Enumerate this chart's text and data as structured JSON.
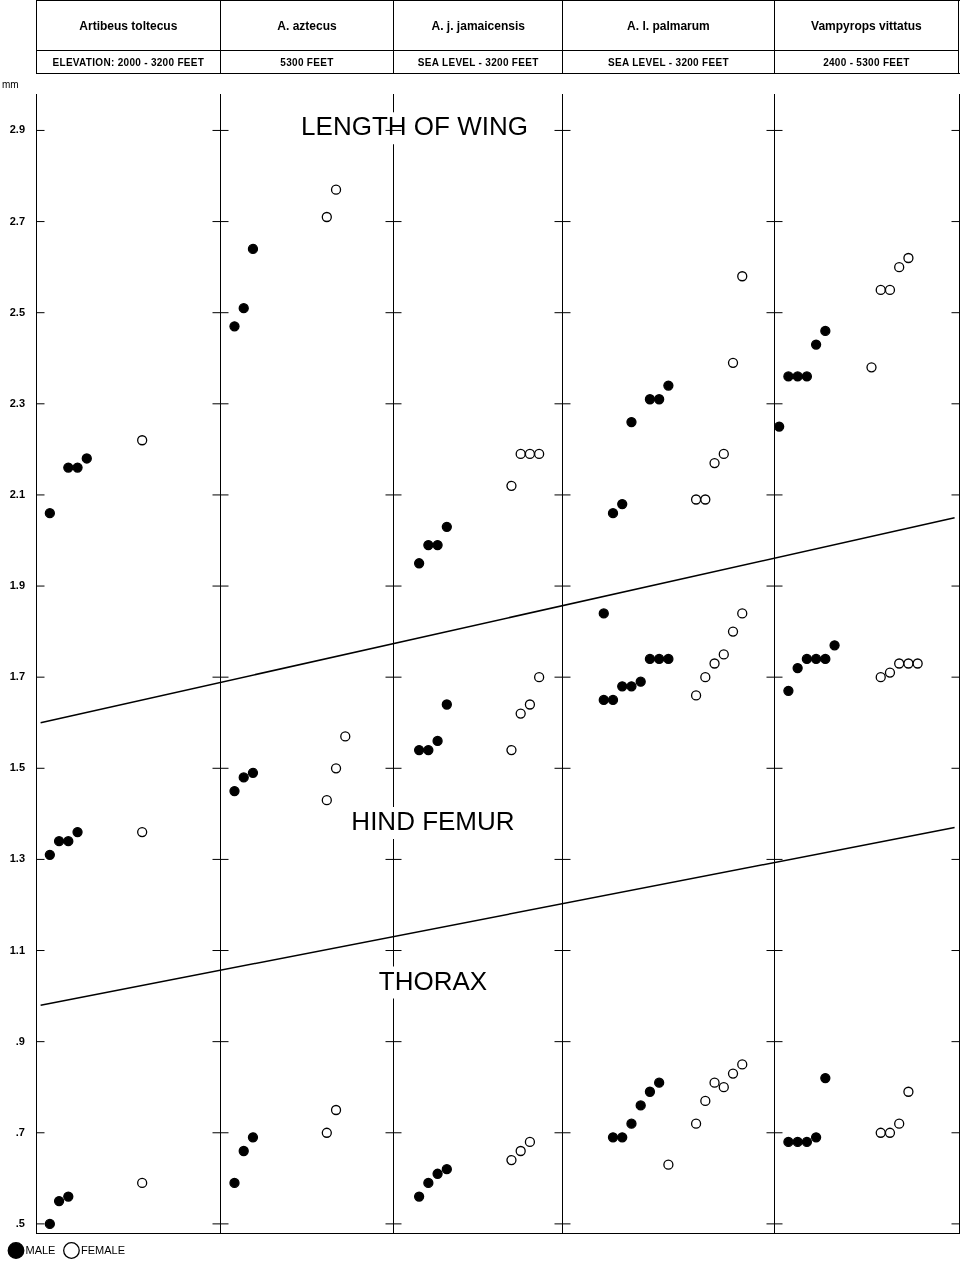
{
  "chart_data": {
    "type": "scatter",
    "categories": [
      null,
      null,
      null,
      null,
      null,
      null,
      null,
      null,
      null,
      null,
      null,
      null,
      null,
      null,
      null,
      null,
      null,
      null,
      null,
      null,
      null,
      null,
      null,
      null,
      null,
      null,
      null,
      null,
      null,
      null,
      null,
      null,
      null,
      null,
      null,
      null,
      null,
      null,
      null,
      null,
      null,
      null,
      null,
      null,
      null,
      null,
      null,
      null,
      null,
      null,
      null,
      null,
      null,
      null,
      null,
      null,
      null,
      null,
      null,
      null,
      null,
      null,
      null,
      null,
      null,
      null,
      null,
      null,
      null,
      null,
      null,
      null,
      null,
      null,
      null,
      null,
      null,
      null,
      null,
      null,
      null,
      null,
      null,
      null,
      null,
      null,
      null,
      null,
      null,
      null,
      null,
      null,
      null,
      null,
      null,
      null,
      null,
      null,
      null,
      null
    ],
    "ylabel": "mm",
    "ylim": [
      0.48,
      2.98
    ],
    "yticks": [
      {
        "value": 0.5,
        "label": ".5"
      },
      {
        "value": 0.7,
        "label": ".7"
      },
      {
        "value": 0.9,
        "label": ".9"
      },
      1.1,
      1.3,
      1.5,
      1.7,
      1.9,
      2.1,
      2.3,
      2.5,
      2.7,
      2.9
    ],
    "marker": "circle",
    "legend": "bottom left",
    "annotations": [
      "Artibeus toltecus",
      "A. aztecus",
      "A. j. jamaicensis",
      "A. l. palmarum",
      "Vampyrops vittatus",
      "ELEVATION: 2000 - 3200 FEET",
      "5300 FEET",
      "SEA LEVEL - 3200 FEET",
      "SEA LEVEL - 3200 FEET",
      "2400 - 5300 FEET",
      "LENGTH OF WING",
      "HIND FEMUR",
      "THORAX"
    ],
    "series": [
      {
        "name": "MALE",
        "color": "#000000",
        "values": [
          null,
          2.06,
          null,
          2.16,
          2.16,
          2.18,
          null,
          null,
          null,
          null,
          null,
          null,
          null,
          null,
          null,
          null,
          null,
          null,
          null,
          null,
          null,
          2.47,
          2.51,
          2.64,
          null,
          null,
          null,
          null,
          null,
          null,
          null,
          null,
          null,
          null,
          null,
          null,
          null,
          null,
          null,
          null,
          null,
          1.95,
          1.99,
          1.99,
          2.03,
          null,
          null,
          null,
          null,
          null,
          null,
          null,
          null,
          null,
          null,
          null,
          null,
          null,
          null,
          null,
          null,
          1.84,
          2.06,
          2.08,
          2.26,
          null,
          2.31,
          2.31,
          2.34,
          null,
          null,
          null,
          null,
          null,
          null,
          null,
          null,
          null,
          null,
          null,
          2.25,
          2.36,
          2.36,
          2.36,
          2.43,
          2.46,
          null,
          null,
          null,
          null,
          null,
          null,
          null,
          null,
          null,
          null,
          null,
          null,
          null,
          null
        ]
      },
      {
        "color": "#000000",
        "values": [
          null,
          1.31,
          1.34,
          1.34,
          1.36,
          null,
          null,
          null,
          null,
          null,
          null,
          null,
          null,
          null,
          null,
          null,
          null,
          null,
          null,
          null,
          null,
          1.45,
          1.48,
          1.49,
          null,
          null,
          null,
          null,
          null,
          null,
          null,
          null,
          null,
          null,
          null,
          null,
          null,
          null,
          null,
          null,
          null,
          1.54,
          1.54,
          1.56,
          1.64,
          null,
          null,
          null,
          null,
          null,
          null,
          null,
          null,
          null,
          null,
          null,
          null,
          null,
          null,
          null,
          null,
          1.65,
          1.65,
          1.68,
          1.68,
          1.69,
          1.74,
          1.74,
          1.74,
          null,
          null,
          null,
          null,
          null,
          null,
          null,
          null,
          null,
          null,
          null,
          null,
          1.67,
          1.72,
          1.74,
          1.74,
          1.74,
          1.77,
          null,
          null,
          null,
          null,
          null,
          null,
          null,
          null,
          null,
          null,
          null,
          null,
          null
        ]
      },
      {
        "color": "#000000",
        "values": [
          null,
          0.5,
          0.55,
          0.56,
          null,
          null,
          null,
          null,
          null,
          null,
          null,
          null,
          null,
          null,
          null,
          null,
          null,
          null,
          null,
          null,
          null,
          0.59,
          0.66,
          0.69,
          null,
          null,
          null,
          null,
          null,
          null,
          null,
          null,
          null,
          null,
          null,
          null,
          null,
          null,
          null,
          null,
          null,
          0.56,
          0.59,
          0.61,
          0.62,
          null,
          null,
          null,
          null,
          null,
          null,
          null,
          null,
          null,
          null,
          null,
          null,
          null,
          null,
          null,
          null,
          null,
          0.69,
          0.69,
          0.72,
          0.76,
          0.79,
          0.81,
          null,
          null,
          null,
          null,
          null,
          null,
          null,
          null,
          null,
          null,
          null,
          null,
          null,
          0.68,
          0.68,
          0.68,
          0.69,
          0.82,
          null,
          null,
          null,
          null,
          null,
          null,
          null,
          null,
          null,
          null,
          null,
          null,
          null,
          null
        ]
      },
      {
        "name": "FEMALE",
        "color": "#ffffff",
        "values": [
          null,
          null,
          null,
          null,
          null,
          null,
          null,
          null,
          null,
          null,
          null,
          2.22,
          null,
          null,
          null,
          null,
          null,
          null,
          null,
          null,
          null,
          null,
          null,
          null,
          null,
          null,
          null,
          null,
          null,
          null,
          null,
          2.71,
          2.77,
          null,
          null,
          null,
          null,
          null,
          null,
          null,
          null,
          null,
          null,
          null,
          null,
          null,
          null,
          null,
          null,
          null,
          null,
          2.12,
          2.19,
          2.19,
          2.19,
          null,
          null,
          null,
          null,
          null,
          null,
          null,
          null,
          null,
          null,
          null,
          null,
          null,
          null,
          null,
          null,
          2.09,
          2.09,
          2.17,
          2.19,
          2.39,
          2.58,
          null,
          null,
          null,
          null,
          null,
          null,
          null,
          null,
          null,
          null,
          null,
          null,
          null,
          2.38,
          2.55,
          2.55,
          2.6,
          2.62,
          null,
          null,
          null,
          null,
          null
        ]
      },
      {
        "color": "#ffffff",
        "values": [
          null,
          null,
          null,
          null,
          null,
          null,
          null,
          null,
          null,
          null,
          null,
          1.36,
          null,
          null,
          null,
          null,
          null,
          null,
          null,
          null,
          null,
          null,
          null,
          null,
          null,
          null,
          null,
          null,
          null,
          null,
          null,
          1.43,
          1.5,
          1.57,
          null,
          null,
          null,
          null,
          null,
          null,
          null,
          null,
          null,
          null,
          null,
          null,
          null,
          null,
          null,
          null,
          null,
          1.54,
          1.62,
          1.64,
          1.7,
          null,
          null,
          null,
          null,
          null,
          null,
          null,
          null,
          null,
          null,
          null,
          null,
          null,
          null,
          null,
          null,
          1.66,
          1.7,
          1.73,
          1.75,
          1.8,
          1.84,
          null,
          null,
          null,
          null,
          null,
          null,
          null,
          null,
          null,
          null,
          null,
          null,
          null,
          null,
          1.7,
          1.71,
          1.73,
          1.73,
          1.73,
          null,
          null,
          null,
          null
        ]
      },
      {
        "color": "#ffffff",
        "values": [
          null,
          null,
          null,
          null,
          null,
          null,
          null,
          null,
          null,
          null,
          null,
          0.59,
          null,
          null,
          null,
          null,
          null,
          null,
          null,
          null,
          null,
          null,
          null,
          null,
          null,
          null,
          null,
          null,
          null,
          null,
          null,
          0.7,
          0.75,
          null,
          null,
          null,
          null,
          null,
          null,
          null,
          null,
          null,
          null,
          null,
          null,
          null,
          null,
          null,
          null,
          null,
          null,
          0.64,
          0.66,
          0.68,
          null,
          null,
          null,
          null,
          null,
          null,
          null,
          null,
          null,
          null,
          null,
          null,
          null,
          null,
          0.63,
          null,
          null,
          0.72,
          0.77,
          0.81,
          0.8,
          0.83,
          0.85,
          null,
          null,
          null,
          null,
          null,
          null,
          null,
          null,
          null,
          null,
          null,
          null,
          null,
          null,
          0.7,
          0.7,
          0.72,
          0.79,
          null,
          null,
          null,
          null,
          null
        ]
      },
      {
        "type": "line",
        "color": "#000000",
        "marker": "none",
        "values": [
          1.6,
          null,
          null,
          null,
          null,
          null,
          null,
          null,
          null,
          null,
          null,
          null,
          null,
          null,
          null,
          null,
          null,
          null,
          null,
          null,
          null,
          null,
          null,
          null,
          null,
          null,
          null,
          null,
          null,
          null,
          null,
          null,
          null,
          null,
          null,
          null,
          null,
          null,
          null,
          null,
          null,
          null,
          null,
          null,
          null,
          null,
          null,
          null,
          null,
          null,
          null,
          null,
          null,
          null,
          null,
          null,
          null,
          null,
          null,
          null,
          null,
          null,
          null,
          null,
          null,
          null,
          null,
          null,
          null,
          null,
          null,
          null,
          null,
          null,
          null,
          null,
          null,
          null,
          null,
          null,
          null,
          null,
          null,
          null,
          null,
          null,
          null,
          null,
          null,
          null,
          null,
          null,
          null,
          null,
          null,
          null,
          null,
          null,
          null,
          2.05
        ]
      },
      {
        "type": "line",
        "color": "#000000",
        "marker": "none",
        "values": [
          0.98,
          null,
          null,
          null,
          null,
          null,
          null,
          null,
          null,
          null,
          null,
          null,
          null,
          null,
          null,
          null,
          null,
          null,
          null,
          null,
          null,
          null,
          null,
          null,
          null,
          null,
          null,
          null,
          null,
          null,
          null,
          null,
          null,
          null,
          null,
          null,
          null,
          null,
          null,
          null,
          null,
          null,
          null,
          null,
          null,
          null,
          null,
          null,
          null,
          null,
          null,
          null,
          null,
          null,
          null,
          null,
          null,
          null,
          null,
          null,
          null,
          null,
          null,
          null,
          null,
          null,
          null,
          null,
          null,
          null,
          null,
          null,
          null,
          null,
          null,
          null,
          null,
          null,
          null,
          null,
          null,
          null,
          null,
          null,
          null,
          null,
          null,
          null,
          null,
          null,
          null,
          null,
          null,
          null,
          null,
          null,
          null,
          null,
          null,
          1.37
        ]
      }
    ]
  }
}
